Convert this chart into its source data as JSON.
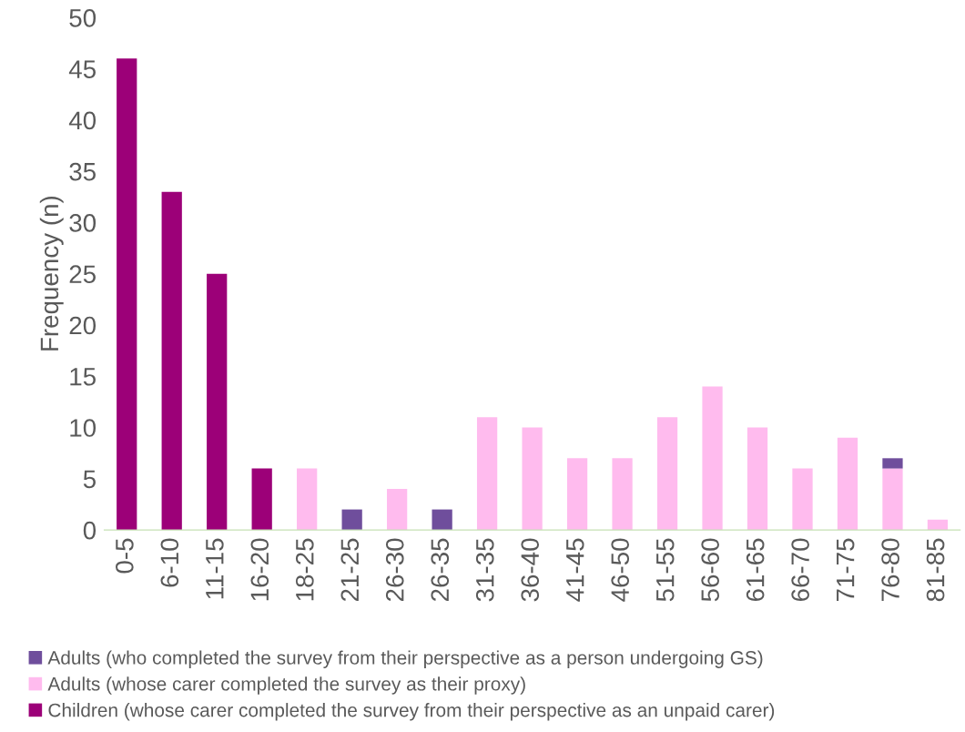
{
  "chart_data": {
    "type": "bar",
    "stacked": true,
    "ylabel": "Frequency (n)",
    "categories": [
      "0-5",
      "6-10",
      "11-15",
      "16-20",
      "18-25",
      "21-25",
      "26-30",
      "26-35",
      "31-35",
      "36-40",
      "41-45",
      "46-50",
      "51-55",
      "56-60",
      "61-65",
      "66-70",
      "71-75",
      "76-80",
      "81-85"
    ],
    "series": [
      {
        "name": "Children (whose carer completed the survey from their perspective as an unpaid carer)",
        "color": "#9c0078",
        "values": [
          46,
          33,
          25,
          6,
          null,
          null,
          null,
          null,
          null,
          null,
          null,
          null,
          null,
          null,
          null,
          null,
          null,
          null,
          null
        ]
      },
      {
        "name": "Adults (whose carer completed the survey as their proxy)",
        "color": "#ffbbee",
        "values": [
          null,
          null,
          null,
          null,
          6,
          null,
          4,
          null,
          11,
          10,
          7,
          7,
          11,
          14,
          10,
          6,
          9,
          6,
          1
        ]
      },
      {
        "name": "Adults (who completed the survey from their perspective as a person undergoing GS)",
        "color": "#6f4e9c",
        "values": [
          null,
          null,
          null,
          null,
          null,
          2,
          null,
          2,
          null,
          null,
          null,
          null,
          null,
          null,
          null,
          null,
          null,
          1,
          null
        ]
      }
    ],
    "ylim": [
      0,
      50
    ],
    "yticks": [
      0,
      5,
      10,
      15,
      20,
      25,
      30,
      35,
      40,
      45,
      50
    ],
    "grid": false,
    "legend": "bottom"
  }
}
